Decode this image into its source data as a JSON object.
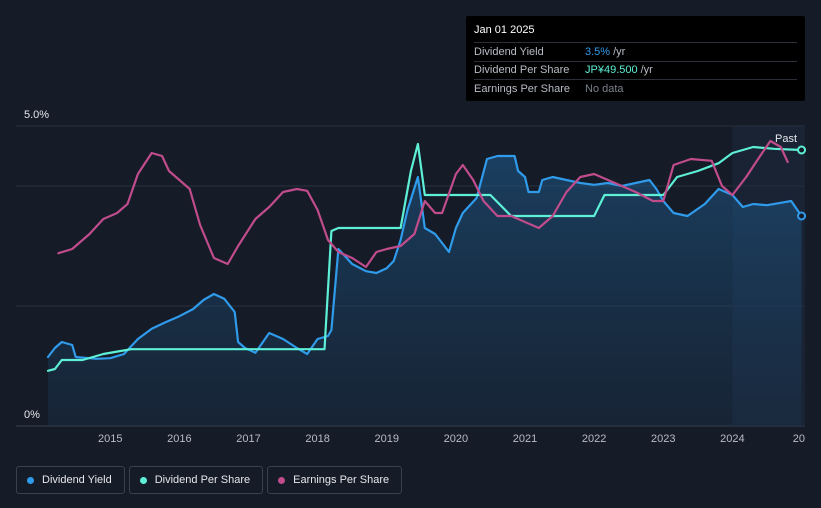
{
  "tooltip": {
    "date": "Jan 01 2025",
    "rows": [
      {
        "label": "Dividend Yield",
        "value": "3.5%",
        "unit": "/yr"
      },
      {
        "label": "Dividend Per Share",
        "value": "JP¥49.500",
        "unit": "/yr"
      },
      {
        "label": "Earnings Per Share",
        "value": "No data",
        "unit": ""
      }
    ]
  },
  "legend": [
    {
      "label": "Dividend Yield",
      "color": "#2f9bea"
    },
    {
      "label": "Dividend Per Share",
      "color": "#5df0d6"
    },
    {
      "label": "Earnings Per Share",
      "color": "#c04c8c"
    }
  ],
  "chart_data": {
    "type": "line",
    "y_tick_labels": [
      "5.0%",
      "0%"
    ],
    "ylim": [
      0,
      5.0
    ],
    "x_tick_labels": [
      "2015",
      "2016",
      "2017",
      "2018",
      "2019",
      "2020",
      "2021",
      "2022",
      "2023",
      "2024",
      "20"
    ],
    "xlim": [
      2014.1,
      2025.05
    ],
    "past_label": "Past",
    "past_start": 2024.0,
    "series": [
      {
        "name": "Dividend Yield",
        "color": "#2f9bea",
        "fill": true,
        "points": [
          [
            2014.1,
            1.15
          ],
          [
            2014.2,
            1.3
          ],
          [
            2014.3,
            1.4
          ],
          [
            2014.45,
            1.35
          ],
          [
            2014.5,
            1.15
          ],
          [
            2014.8,
            1.12
          ],
          [
            2015.0,
            1.13
          ],
          [
            2015.2,
            1.2
          ],
          [
            2015.4,
            1.45
          ],
          [
            2015.6,
            1.62
          ],
          [
            2015.8,
            1.73
          ],
          [
            2016.0,
            1.83
          ],
          [
            2016.2,
            1.95
          ],
          [
            2016.35,
            2.1
          ],
          [
            2016.5,
            2.2
          ],
          [
            2016.65,
            2.12
          ],
          [
            2016.8,
            1.9
          ],
          [
            2016.85,
            1.4
          ],
          [
            2016.95,
            1.3
          ],
          [
            2017.1,
            1.22
          ],
          [
            2017.3,
            1.55
          ],
          [
            2017.5,
            1.45
          ],
          [
            2017.7,
            1.3
          ],
          [
            2017.85,
            1.2
          ],
          [
            2018.0,
            1.45
          ],
          [
            2018.15,
            1.5
          ],
          [
            2018.2,
            1.6
          ],
          [
            2018.3,
            2.95
          ],
          [
            2018.5,
            2.7
          ],
          [
            2018.7,
            2.58
          ],
          [
            2018.85,
            2.55
          ],
          [
            2019.0,
            2.63
          ],
          [
            2019.1,
            2.75
          ],
          [
            2019.2,
            3.1
          ],
          [
            2019.3,
            3.6
          ],
          [
            2019.45,
            4.15
          ],
          [
            2019.55,
            3.3
          ],
          [
            2019.7,
            3.2
          ],
          [
            2019.8,
            3.05
          ],
          [
            2019.9,
            2.9
          ],
          [
            2020.0,
            3.3
          ],
          [
            2020.1,
            3.55
          ],
          [
            2020.3,
            3.8
          ],
          [
            2020.45,
            4.45
          ],
          [
            2020.6,
            4.5
          ],
          [
            2020.85,
            4.5
          ],
          [
            2020.9,
            4.25
          ],
          [
            2021.0,
            4.15
          ],
          [
            2021.05,
            3.9
          ],
          [
            2021.2,
            3.9
          ],
          [
            2021.25,
            4.1
          ],
          [
            2021.4,
            4.15
          ],
          [
            2021.6,
            4.1
          ],
          [
            2021.8,
            4.05
          ],
          [
            2022.0,
            4.02
          ],
          [
            2022.2,
            4.05
          ],
          [
            2022.4,
            4.0
          ],
          [
            2022.6,
            4.05
          ],
          [
            2022.8,
            4.1
          ],
          [
            2022.9,
            3.95
          ],
          [
            2023.0,
            3.75
          ],
          [
            2023.15,
            3.55
          ],
          [
            2023.35,
            3.5
          ],
          [
            2023.6,
            3.7
          ],
          [
            2023.8,
            3.95
          ],
          [
            2024.0,
            3.85
          ],
          [
            2024.15,
            3.65
          ],
          [
            2024.3,
            3.7
          ],
          [
            2024.5,
            3.68
          ],
          [
            2024.7,
            3.72
          ],
          [
            2024.85,
            3.75
          ],
          [
            2025.0,
            3.5
          ]
        ]
      },
      {
        "name": "Dividend Per Share",
        "color": "#5df0d6",
        "fill": false,
        "points": [
          [
            2014.1,
            0.92
          ],
          [
            2014.2,
            0.95
          ],
          [
            2014.3,
            1.1
          ],
          [
            2014.6,
            1.1
          ],
          [
            2014.9,
            1.2
          ],
          [
            2015.15,
            1.25
          ],
          [
            2015.3,
            1.28
          ],
          [
            2016.0,
            1.28
          ],
          [
            2017.0,
            1.28
          ],
          [
            2018.1,
            1.28
          ],
          [
            2018.2,
            3.25
          ],
          [
            2018.3,
            3.3
          ],
          [
            2019.0,
            3.3
          ],
          [
            2019.2,
            3.3
          ],
          [
            2019.35,
            4.25
          ],
          [
            2019.45,
            4.7
          ],
          [
            2019.55,
            3.85
          ],
          [
            2019.7,
            3.85
          ],
          [
            2020.0,
            3.85
          ],
          [
            2020.5,
            3.85
          ],
          [
            2020.8,
            3.5
          ],
          [
            2021.0,
            3.5
          ],
          [
            2022.0,
            3.5
          ],
          [
            2022.15,
            3.85
          ],
          [
            2022.4,
            3.85
          ],
          [
            2023.0,
            3.85
          ],
          [
            2023.2,
            4.15
          ],
          [
            2023.5,
            4.25
          ],
          [
            2023.8,
            4.38
          ],
          [
            2024.0,
            4.55
          ],
          [
            2024.3,
            4.65
          ],
          [
            2024.6,
            4.62
          ],
          [
            2025.0,
            4.6
          ]
        ]
      },
      {
        "name": "Earnings Per Share",
        "color": "#c04c8c",
        "fill": false,
        "points": [
          [
            2014.25,
            2.88
          ],
          [
            2014.45,
            2.95
          ],
          [
            2014.7,
            3.2
          ],
          [
            2014.9,
            3.45
          ],
          [
            2015.1,
            3.55
          ],
          [
            2015.25,
            3.7
          ],
          [
            2015.4,
            4.2
          ],
          [
            2015.6,
            4.55
          ],
          [
            2015.75,
            4.5
          ],
          [
            2015.85,
            4.25
          ],
          [
            2016.0,
            4.1
          ],
          [
            2016.15,
            3.95
          ],
          [
            2016.3,
            3.35
          ],
          [
            2016.5,
            2.8
          ],
          [
            2016.7,
            2.7
          ],
          [
            2016.85,
            3.0
          ],
          [
            2017.1,
            3.45
          ],
          [
            2017.3,
            3.65
          ],
          [
            2017.5,
            3.9
          ],
          [
            2017.7,
            3.95
          ],
          [
            2017.85,
            3.92
          ],
          [
            2018.0,
            3.6
          ],
          [
            2018.15,
            3.1
          ],
          [
            2018.3,
            2.9
          ],
          [
            2018.5,
            2.8
          ],
          [
            2018.7,
            2.65
          ],
          [
            2018.85,
            2.9
          ],
          [
            2019.0,
            2.95
          ],
          [
            2019.2,
            3.0
          ],
          [
            2019.4,
            3.2
          ],
          [
            2019.55,
            3.75
          ],
          [
            2019.7,
            3.55
          ],
          [
            2019.8,
            3.55
          ],
          [
            2020.0,
            4.2
          ],
          [
            2020.1,
            4.35
          ],
          [
            2020.25,
            4.1
          ],
          [
            2020.4,
            3.75
          ],
          [
            2020.6,
            3.5
          ],
          [
            2020.8,
            3.5
          ],
          [
            2021.0,
            3.4
          ],
          [
            2021.2,
            3.3
          ],
          [
            2021.4,
            3.5
          ],
          [
            2021.6,
            3.9
          ],
          [
            2021.8,
            4.15
          ],
          [
            2022.0,
            4.2
          ],
          [
            2022.3,
            4.05
          ],
          [
            2022.6,
            3.9
          ],
          [
            2022.85,
            3.75
          ],
          [
            2023.0,
            3.75
          ],
          [
            2023.15,
            4.35
          ],
          [
            2023.4,
            4.45
          ],
          [
            2023.7,
            4.42
          ],
          [
            2023.85,
            4.0
          ],
          [
            2024.0,
            3.85
          ],
          [
            2024.2,
            4.15
          ],
          [
            2024.4,
            4.5
          ],
          [
            2024.55,
            4.75
          ],
          [
            2024.7,
            4.65
          ],
          [
            2024.8,
            4.4
          ]
        ]
      }
    ]
  }
}
